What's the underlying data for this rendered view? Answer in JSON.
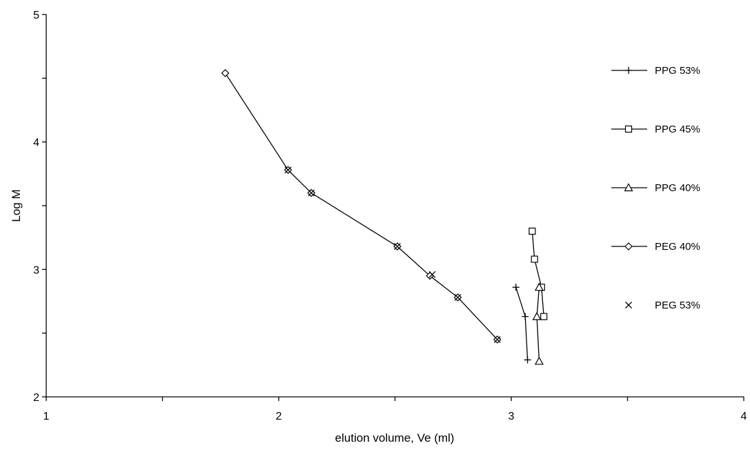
{
  "chart_data": {
    "type": "scatter",
    "xlabel": "elution volume, Ve (ml)",
    "ylabel": "Log M",
    "xlim": [
      1,
      4
    ],
    "ylim": [
      2,
      5
    ],
    "x_ticks": [
      1,
      1.5,
      2,
      2.5,
      3,
      3.5,
      4
    ],
    "x_tick_labels": [
      {
        "value": 1,
        "label": "1"
      },
      {
        "value": 2,
        "label": "2"
      },
      {
        "value": 3,
        "label": "3"
      },
      {
        "value": 4,
        "label": "4"
      }
    ],
    "y_ticks": [
      2,
      2.5,
      3,
      3.5,
      4,
      4.5,
      5
    ],
    "y_tick_labels": [
      {
        "value": 2,
        "label": "2"
      },
      {
        "value": 3,
        "label": "3"
      },
      {
        "value": 4,
        "label": "4"
      },
      {
        "value": 5,
        "label": "5"
      }
    ],
    "grid": false,
    "legend_position": "right",
    "colors": {
      "line": "#000000",
      "axis": "#000000",
      "background": "#ffffff"
    },
    "series": [
      {
        "name": "PPG 53%",
        "marker": "plus",
        "line": true,
        "x": [
          3.02,
          3.06,
          3.07
        ],
        "y": [
          2.86,
          2.63,
          2.29
        ]
      },
      {
        "name": "PPG 45%",
        "marker": "square",
        "line": true,
        "x": [
          3.09,
          3.1,
          3.13,
          3.14
        ],
        "y": [
          3.3,
          3.08,
          2.86,
          2.63
        ]
      },
      {
        "name": "PPG 40%",
        "marker": "triangle",
        "line": true,
        "x": [
          3.12,
          3.11,
          3.12
        ],
        "y": [
          2.86,
          2.63,
          2.28
        ]
      },
      {
        "name": "PEG 40%",
        "marker": "diamond",
        "line": true,
        "x": [
          1.77,
          2.04,
          2.14,
          2.51,
          2.65,
          2.77,
          2.94
        ],
        "y": [
          4.54,
          3.78,
          3.6,
          3.18,
          2.95,
          2.78,
          2.45
        ]
      },
      {
        "name": "PEG 53%",
        "marker": "cross",
        "line": false,
        "x": [
          2.04,
          2.14,
          2.51,
          2.66,
          2.77,
          2.94
        ],
        "y": [
          3.78,
          3.6,
          3.18,
          2.96,
          2.78,
          2.45
        ]
      }
    ]
  }
}
